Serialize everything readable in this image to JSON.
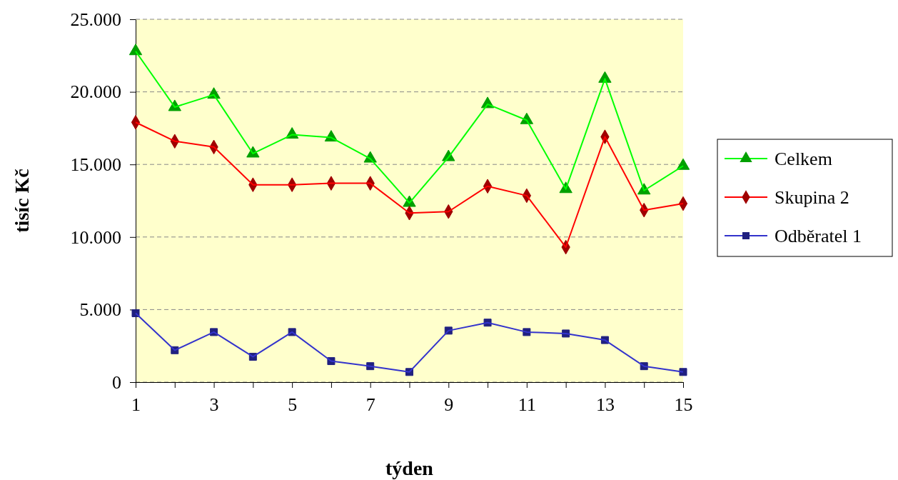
{
  "chart_data": {
    "type": "line",
    "xlabel": "týden",
    "ylabel": "tisíc Kč",
    "x": [
      1,
      2,
      3,
      4,
      5,
      6,
      7,
      8,
      9,
      10,
      11,
      12,
      13,
      14,
      15
    ],
    "xlim": [
      1,
      15
    ],
    "xticks": [
      1,
      {
        "value": 2,
        "label": null
      },
      3,
      {
        "value": 4,
        "label": null
      },
      5,
      {
        "value": 6,
        "label": null
      },
      7,
      {
        "value": 8,
        "label": null
      },
      9,
      {
        "value": 10,
        "label": null
      },
      11,
      {
        "value": 12,
        "label": null
      },
      13,
      {
        "value": 14,
        "label": null
      },
      15
    ],
    "ylim": [
      0,
      25000
    ],
    "yticks": [
      {
        "value": 0,
        "label": "0"
      },
      {
        "value": 5000,
        "label": "5.000"
      },
      {
        "value": 10000,
        "label": "10.000"
      },
      {
        "value": 15000,
        "label": "15.000"
      },
      {
        "value": 20000,
        "label": "20.000"
      },
      {
        "value": 25000,
        "label": "25.000"
      }
    ],
    "grid": "y",
    "legend": "right",
    "line_style": "solid",
    "series": [
      {
        "name": "Celkem",
        "color": "#00ff00",
        "marker": "triangle",
        "values": [
          22800,
          18950,
          19800,
          15750,
          17050,
          16850,
          15400,
          12350,
          15500,
          19150,
          18050,
          13300,
          20900,
          13200,
          14900
        ]
      },
      {
        "name": "Skupina 2",
        "color": "#ff0000",
        "marker": "diamond",
        "values": [
          17900,
          16600,
          16200,
          13600,
          13600,
          13700,
          13700,
          11650,
          11750,
          13500,
          12850,
          9300,
          16900,
          11850,
          12300
        ]
      },
      {
        "name": "Odběratel 1",
        "color": "#3333cc",
        "marker": "square",
        "values": [
          4750,
          2200,
          3450,
          1750,
          3450,
          1450,
          1100,
          700,
          3550,
          4100,
          3450,
          3350,
          2900,
          1100,
          700
        ]
      }
    ]
  }
}
